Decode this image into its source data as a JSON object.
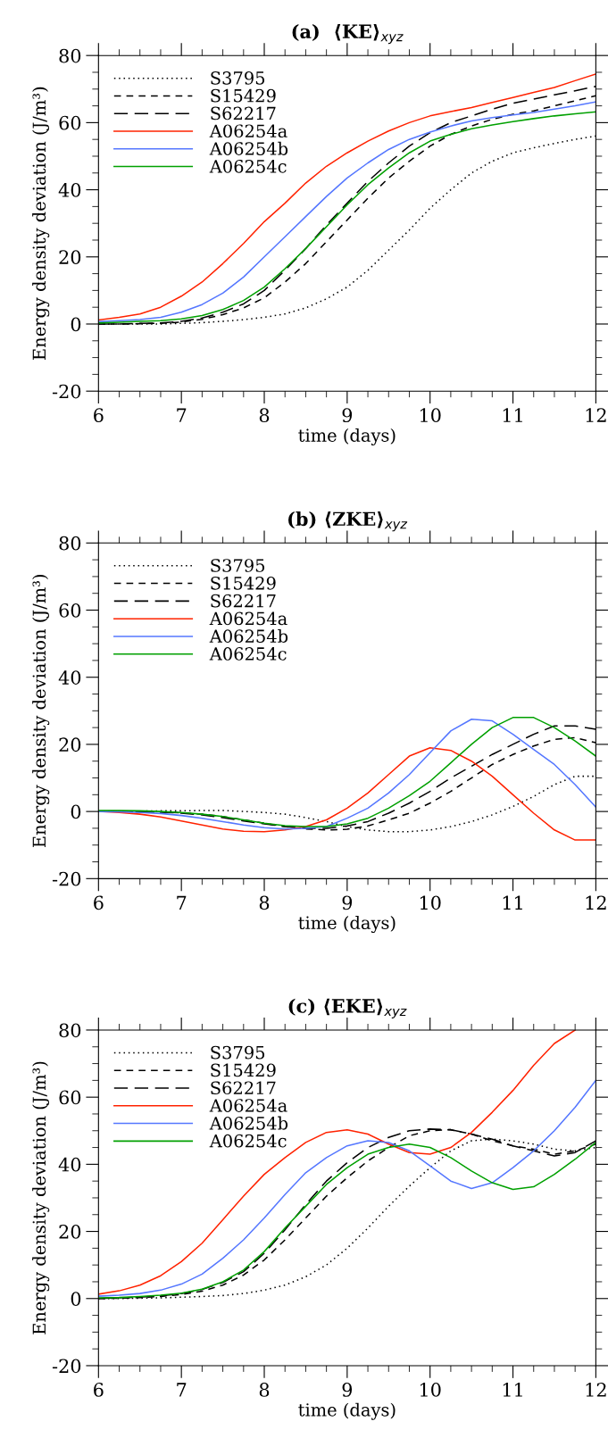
{
  "chart_data": [
    {
      "type": "line",
      "title": "(a)  ⟨KE⟩$_{xyz}$",
      "xlabel": "time (days)",
      "ylabel": "Energy density deviation (J/m³)",
      "xlim": [
        6,
        12
      ],
      "ylim": [
        -20,
        80
      ],
      "xticks": [
        6,
        7,
        8,
        9,
        10,
        11,
        12
      ],
      "yticks": [
        -20,
        0,
        20,
        40,
        60,
        80
      ],
      "legend": "top left",
      "x": [
        6,
        6.25,
        6.5,
        6.75,
        7,
        7.25,
        7.5,
        7.75,
        8,
        8.25,
        8.5,
        8.75,
        9,
        9.25,
        9.5,
        9.75,
        10,
        10.25,
        10.5,
        10.75,
        11,
        11.25,
        11.5,
        11.75,
        12
      ],
      "series": [
        {
          "name": "S3795",
          "color": "#000000",
          "line_style": "dotted",
          "values": [
            0,
            0,
            0,
            0,
            0.2,
            0.4,
            0.8,
            1.3,
            2,
            3,
            4.8,
            7.5,
            11,
            16,
            22,
            28,
            34.5,
            40,
            45,
            48.5,
            51,
            52.5,
            53.8,
            55,
            56
          ]
        },
        {
          "name": "S15429",
          "color": "#000000",
          "line_style": "dashed",
          "values": [
            0,
            0,
            0.1,
            0.2,
            0.6,
            1.4,
            2.8,
            4.8,
            7.8,
            12.5,
            18,
            24.5,
            31,
            37.5,
            43.5,
            48.5,
            53,
            56.5,
            59,
            61,
            62.5,
            63.5,
            65,
            66.5,
            68
          ]
        },
        {
          "name": "S62217",
          "color": "#000000",
          "line_style": "long dashed",
          "values": [
            0,
            0,
            0.2,
            0.3,
            0.8,
            1.8,
            3.5,
            6,
            10,
            16,
            22.5,
            29.5,
            36,
            42.5,
            48,
            53,
            57,
            60,
            62,
            64,
            65.8,
            67,
            68.3,
            69.5,
            70.8
          ]
        },
        {
          "name": "A06254a",
          "color": "#ff2200",
          "line_style": "solid",
          "values": [
            1.2,
            2,
            3,
            5,
            8.3,
            12.5,
            18,
            24,
            30.5,
            36,
            42,
            47,
            51,
            54.5,
            57.5,
            60,
            62,
            63.3,
            64.5,
            66,
            67.5,
            69,
            70.5,
            72.5,
            74.5
          ]
        },
        {
          "name": "A06254b",
          "color": "#5577ff",
          "line_style": "solid",
          "values": [
            0.7,
            1,
            1.3,
            2,
            3.5,
            5.8,
            9.2,
            14,
            20,
            26,
            32,
            38,
            43.5,
            48,
            52,
            55,
            57.2,
            59,
            60.5,
            61.5,
            62.3,
            63,
            64,
            65,
            66.2
          ]
        },
        {
          "name": "A06254c",
          "color": "#00a000",
          "line_style": "solid",
          "values": [
            0.3,
            0.5,
            0.8,
            1,
            1.5,
            2.5,
            4.3,
            7,
            11,
            16.5,
            22.5,
            29,
            35.5,
            41.5,
            46.5,
            51,
            54.5,
            56.5,
            58.2,
            59.3,
            60.3,
            61.2,
            62,
            62.6,
            63.2
          ]
        }
      ]
    },
    {
      "type": "line",
      "title": "(b) ⟨ZKE⟩$_{xyz}$",
      "xlabel": "time (days)",
      "ylabel": "Energy density deviation (J/m³)",
      "xlim": [
        6,
        12
      ],
      "ylim": [
        -20,
        80
      ],
      "xticks": [
        6,
        7,
        8,
        9,
        10,
        11,
        12
      ],
      "yticks": [
        -20,
        0,
        20,
        40,
        60,
        80
      ],
      "legend": "top left",
      "x": [
        6,
        6.25,
        6.5,
        6.75,
        7,
        7.25,
        7.5,
        7.75,
        8,
        8.25,
        8.5,
        8.75,
        9,
        9.25,
        9.5,
        9.75,
        10,
        10.25,
        10.5,
        10.75,
        11,
        11.25,
        11.5,
        11.75,
        12
      ],
      "series": [
        {
          "name": "S3795",
          "color": "#000000",
          "line_style": "dotted",
          "values": [
            0,
            0,
            0.1,
            0.2,
            0.2,
            0.3,
            0.3,
            0,
            -0.3,
            -0.8,
            -1.8,
            -3,
            -4.5,
            -5.5,
            -6,
            -6,
            -5.5,
            -4.5,
            -3,
            -1,
            1.5,
            4.5,
            8,
            10.5,
            10.5
          ]
        },
        {
          "name": "S15429",
          "color": "#000000",
          "line_style": "dashed",
          "values": [
            0,
            0,
            0,
            -0.2,
            -0.4,
            -0.8,
            -1.5,
            -2.5,
            -3.5,
            -4.5,
            -5.2,
            -5.5,
            -5.3,
            -4.3,
            -2.5,
            -0.5,
            2.5,
            6,
            10,
            14,
            17,
            19.5,
            21.5,
            22,
            20.5
          ]
        },
        {
          "name": "S62217",
          "color": "#000000",
          "line_style": "long dashed",
          "values": [
            0,
            0,
            0,
            -0.2,
            -0.5,
            -1,
            -1.8,
            -2.8,
            -3.7,
            -4.5,
            -5,
            -5,
            -4.3,
            -3,
            -0.5,
            2.5,
            6,
            10,
            13.5,
            17,
            20,
            23,
            25.5,
            25.5,
            24.5
          ]
        },
        {
          "name": "A06254a",
          "color": "#ff2200",
          "line_style": "solid",
          "values": [
            0,
            -0.3,
            -0.8,
            -1.6,
            -2.8,
            -4,
            -5.2,
            -5.9,
            -6,
            -5.5,
            -4.5,
            -2.5,
            1,
            5.5,
            11,
            16.5,
            19,
            18.2,
            15,
            10.5,
            5,
            -0.5,
            -5.5,
            -8.5,
            -8.5
          ]
        },
        {
          "name": "A06254b",
          "color": "#5577ff",
          "line_style": "solid",
          "values": [
            0,
            -0.1,
            -0.3,
            -0.6,
            -1.2,
            -2,
            -3,
            -4,
            -4.8,
            -5.2,
            -5,
            -4.5,
            -2,
            1,
            5.5,
            11,
            17.5,
            24,
            27.5,
            27,
            23,
            18.5,
            14,
            8,
            1.3
          ]
        },
        {
          "name": "A06254c",
          "color": "#00a000",
          "line_style": "solid",
          "values": [
            0.3,
            0.3,
            0.2,
            0,
            -0.3,
            -0.8,
            -1.5,
            -2.5,
            -3.5,
            -4.2,
            -4.5,
            -4.5,
            -3.7,
            -2,
            1,
            4.7,
            9,
            14.5,
            20,
            25,
            28,
            28,
            25,
            21,
            16.5
          ]
        }
      ]
    },
    {
      "type": "line",
      "title": "(c) ⟨EKE⟩$_{xyz}$",
      "xlabel": "time (days)",
      "ylabel": "Energy density deviation (J/m³)",
      "xlim": [
        6,
        12
      ],
      "ylim": [
        -20,
        80
      ],
      "xticks": [
        6,
        7,
        8,
        9,
        10,
        11,
        12
      ],
      "yticks": [
        -20,
        0,
        20,
        40,
        60,
        80
      ],
      "legend": "top left",
      "x": [
        6,
        6.25,
        6.5,
        6.75,
        7,
        7.25,
        7.5,
        7.75,
        8,
        8.25,
        8.5,
        8.75,
        9,
        9.25,
        9.5,
        9.75,
        10,
        10.25,
        10.5,
        10.75,
        11,
        11.25,
        11.5,
        11.75,
        12
      ],
      "series": [
        {
          "name": "S3795",
          "color": "#000000",
          "line_style": "dotted",
          "values": [
            0,
            0,
            0.1,
            0.2,
            0.4,
            0.6,
            0.9,
            1.5,
            2.5,
            4,
            6.5,
            10,
            15,
            21,
            27.5,
            33.5,
            39,
            44,
            47,
            47.5,
            47,
            46,
            44.5,
            44,
            45
          ]
        },
        {
          "name": "S15429",
          "color": "#000000",
          "line_style": "dashed",
          "values": [
            0,
            0.1,
            0.3,
            0.6,
            1.2,
            2.2,
            4,
            7,
            11.5,
            17.5,
            24,
            30.5,
            36,
            41,
            45,
            48.5,
            50,
            50.3,
            49,
            47,
            45.5,
            44.5,
            43,
            44,
            46
          ]
        },
        {
          "name": "S62217",
          "color": "#000000",
          "line_style": "long dashed",
          "values": [
            0,
            0.2,
            0.4,
            0.8,
            1.5,
            2.7,
            4.8,
            8,
            13.5,
            20.5,
            28,
            35,
            40.5,
            45,
            48,
            50,
            50.5,
            50.3,
            49,
            47.5,
            45.5,
            44,
            42.5,
            43.5,
            47
          ]
        },
        {
          "name": "A06254a",
          "color": "#ff2200",
          "line_style": "solid",
          "values": [
            1.3,
            2.3,
            4,
            6.8,
            11,
            16.5,
            23.5,
            30.5,
            37,
            42,
            46.5,
            49.5,
            50.3,
            49,
            46,
            43.5,
            43,
            45,
            49.5,
            55.5,
            62,
            69.5,
            76,
            80,
            null
          ]
        },
        {
          "name": "A06254b",
          "color": "#5577ff",
          "line_style": "solid",
          "values": [
            0.7,
            1,
            1.5,
            2.5,
            4.3,
            7.3,
            12,
            17.5,
            24,
            31,
            37.5,
            42,
            45.5,
            47,
            46.5,
            44,
            39.5,
            35,
            32.8,
            34.5,
            39,
            44,
            50,
            57,
            65
          ]
        },
        {
          "name": "A06254c",
          "color": "#00a000",
          "line_style": "solid",
          "values": [
            0.2,
            0.3,
            0.6,
            1,
            1.6,
            2.8,
            5,
            8.5,
            14,
            21,
            27.5,
            34,
            39,
            43,
            45,
            46,
            45,
            42,
            38,
            34.5,
            32.5,
            33.3,
            37,
            41.5,
            46.5
          ]
        }
      ]
    }
  ]
}
